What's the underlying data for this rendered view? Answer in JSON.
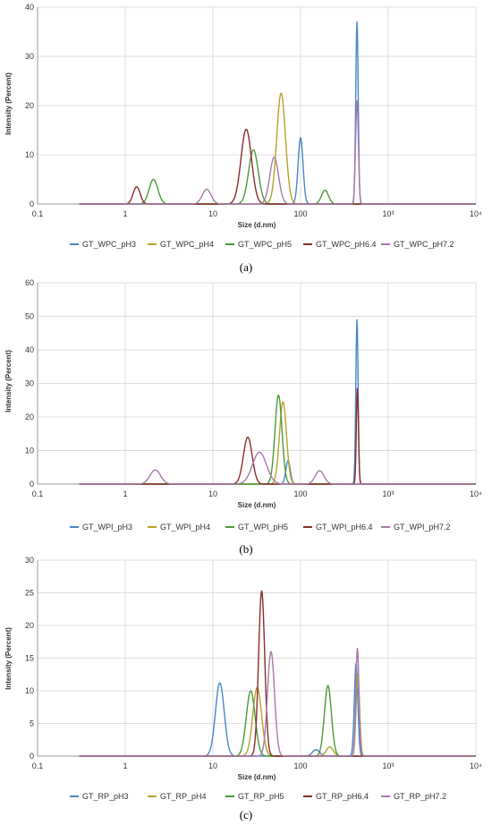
{
  "chart_data": [
    {
      "type": "line",
      "caption": "(a)",
      "xlabel": "Size (d.nm)",
      "ylabel": "Intensity (Percent)",
      "x_scale": "log",
      "xlim": [
        0.1,
        10000
      ],
      "ylim": [
        0,
        40
      ],
      "x_ticks": [
        "0.1",
        "1",
        "10",
        "100",
        "10³",
        "10⁴"
      ],
      "y_ticks": [
        "0",
        "10",
        "20",
        "30",
        "40"
      ],
      "grid": true,
      "legend_position": "bottom",
      "series": [
        {
          "name": "GT_WPC_pH3",
          "color": "#4a86c8",
          "peaks": [
            {
              "x": 100,
              "y": 13.5,
              "w": 0.028
            },
            {
              "x": 440,
              "y": 37,
              "w": 0.014
            }
          ]
        },
        {
          "name": "GT_WPC_pH4",
          "color": "#b8a22a",
          "peaks": [
            {
              "x": 60,
              "y": 22.5,
              "w": 0.05
            }
          ]
        },
        {
          "name": "GT_WPC_pH5",
          "color": "#4b9a3c",
          "peaks": [
            {
              "x": 2.1,
              "y": 5,
              "w": 0.05
            },
            {
              "x": 29,
              "y": 11,
              "w": 0.055
            },
            {
              "x": 190,
              "y": 2.8,
              "w": 0.04
            }
          ]
        },
        {
          "name": "GT_WPC_pH6.4",
          "color": "#8b2d2d",
          "peaks": [
            {
              "x": 1.35,
              "y": 3.5,
              "w": 0.04
            },
            {
              "x": 24,
              "y": 15.2,
              "w": 0.06
            }
          ]
        },
        {
          "name": "GT_WPC_pH7.2",
          "color": "#a57aa8",
          "peaks": [
            {
              "x": 8.5,
              "y": 3,
              "w": 0.05
            },
            {
              "x": 50,
              "y": 9.5,
              "w": 0.05
            },
            {
              "x": 440,
              "y": 21,
              "w": 0.016
            }
          ]
        }
      ]
    },
    {
      "type": "line",
      "caption": "(b)",
      "xlabel": "Size (d.nm)",
      "ylabel": "Intensity (Percent)",
      "x_scale": "log",
      "xlim": [
        0.1,
        10000
      ],
      "ylim": [
        0,
        60
      ],
      "x_ticks": [
        "0.1",
        "1",
        "10",
        "100",
        "10³",
        "10⁴"
      ],
      "y_ticks": [
        "0",
        "10",
        "20",
        "30",
        "40",
        "50",
        "60"
      ],
      "grid": true,
      "legend_position": "bottom",
      "series": [
        {
          "name": "GT_WPI_pH3",
          "color": "#4a86c8",
          "peaks": [
            {
              "x": 72,
              "y": 7,
              "w": 0.025
            },
            {
              "x": 440,
              "y": 49,
              "w": 0.013
            }
          ]
        },
        {
          "name": "GT_WPI_pH4",
          "color": "#b8a22a",
          "peaks": [
            {
              "x": 63,
              "y": 24.5,
              "w": 0.04
            }
          ]
        },
        {
          "name": "GT_WPI_pH5",
          "color": "#4b9a3c",
          "peaks": [
            {
              "x": 56,
              "y": 26.5,
              "w": 0.04
            }
          ]
        },
        {
          "name": "GT_WPI_pH6.4",
          "color": "#8b2d2d",
          "peaks": [
            {
              "x": 25,
              "y": 14,
              "w": 0.05
            },
            {
              "x": 445,
              "y": 28.5,
              "w": 0.012
            }
          ]
        },
        {
          "name": "GT_WPI_pH7.2",
          "color": "#a57aa8",
          "peaks": [
            {
              "x": 2.2,
              "y": 4.2,
              "w": 0.06
            },
            {
              "x": 34,
              "y": 9.5,
              "w": 0.08
            },
            {
              "x": 165,
              "y": 4,
              "w": 0.05
            }
          ]
        }
      ]
    },
    {
      "type": "line",
      "caption": "(c)",
      "xlabel": "Size (d.nm)",
      "ylabel": "Intensity (Percent)",
      "x_scale": "log",
      "xlim": [
        0.1,
        10000
      ],
      "ylim": [
        0,
        30
      ],
      "x_ticks": [
        "0.1",
        "1",
        "10",
        "100",
        "10³",
        "10⁴"
      ],
      "y_ticks": [
        "0",
        "5",
        "10",
        "15",
        "20",
        "25",
        "30"
      ],
      "grid": true,
      "legend_position": "bottom",
      "series": [
        {
          "name": "GT_RP_pH3",
          "color": "#4a86c8",
          "peaks": [
            {
              "x": 12,
              "y": 11.2,
              "w": 0.05
            },
            {
              "x": 150,
              "y": 1,
              "w": 0.04
            },
            {
              "x": 430,
              "y": 14.2,
              "w": 0.02
            }
          ]
        },
        {
          "name": "GT_RP_pH4",
          "color": "#b8a22a",
          "peaks": [
            {
              "x": 32,
              "y": 10.5,
              "w": 0.05
            },
            {
              "x": 215,
              "y": 1.4,
              "w": 0.04
            },
            {
              "x": 450,
              "y": 12.5,
              "w": 0.02
            }
          ]
        },
        {
          "name": "GT_RP_pH5",
          "color": "#4b9a3c",
          "peaks": [
            {
              "x": 27,
              "y": 10,
              "w": 0.05
            },
            {
              "x": 205,
              "y": 10.8,
              "w": 0.04
            }
          ]
        },
        {
          "name": "GT_RP_pH6.4",
          "color": "#8b2d2d",
          "peaks": [
            {
              "x": 36,
              "y": 25.3,
              "w": 0.035
            }
          ]
        },
        {
          "name": "GT_RP_pH7.2",
          "color": "#a57aa8",
          "peaks": [
            {
              "x": 46,
              "y": 16,
              "w": 0.04
            },
            {
              "x": 445,
              "y": 16.5,
              "w": 0.018
            }
          ]
        }
      ]
    }
  ]
}
